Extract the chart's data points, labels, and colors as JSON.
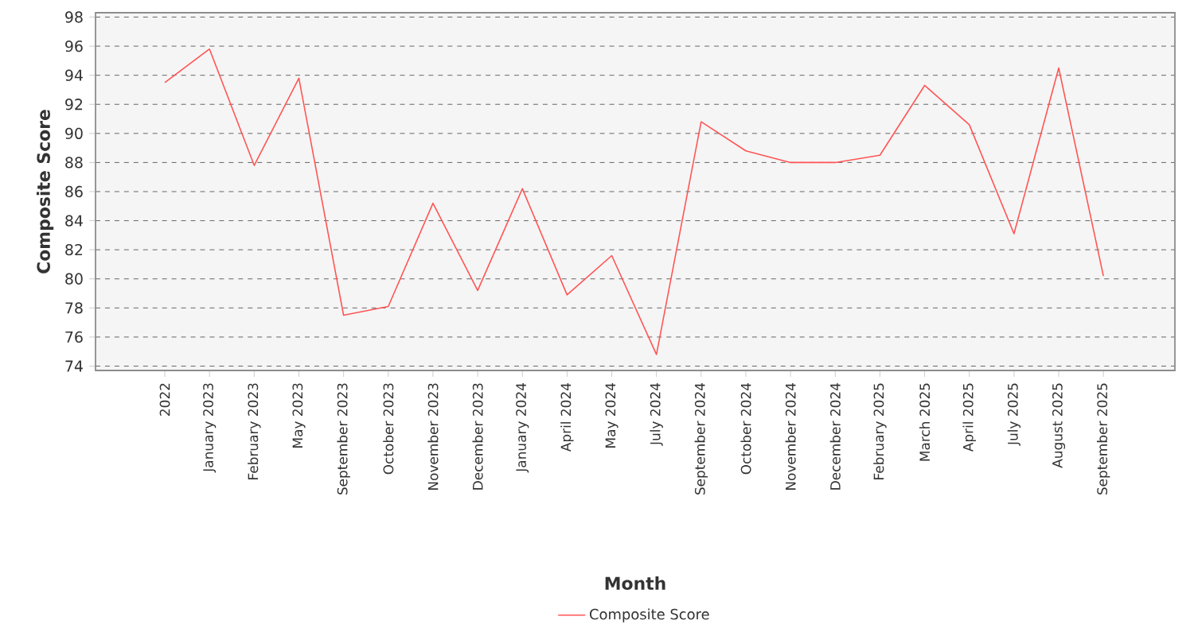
{
  "chart_data": {
    "type": "line",
    "xlabel": "Month",
    "ylabel": "Composite Score",
    "categories": [
      "2022",
      "January 2023",
      "February 2023",
      "May 2023",
      "September 2023",
      "October 2023",
      "November 2023",
      "December 2023",
      "January 2024",
      "April 2024",
      "May 2024",
      "July 2024",
      "September 2024",
      "October 2024",
      "November 2024",
      "December 2024",
      "February 2025",
      "March 2025",
      "April 2025",
      "July 2025",
      "August 2025",
      "September 2025"
    ],
    "series": [
      {
        "name": "Composite Score",
        "color": "#ff5555",
        "values": [
          93.5,
          95.8,
          87.8,
          93.8,
          77.5,
          78.1,
          85.2,
          79.2,
          86.2,
          78.9,
          81.6,
          74.8,
          90.8,
          88.8,
          88.0,
          88.0,
          88.5,
          93.3,
          90.6,
          83.1,
          94.5,
          80.2
        ]
      }
    ],
    "ylim": [
      73.7,
      98.3
    ],
    "yticks": [
      74,
      76,
      78,
      80,
      82,
      84,
      86,
      88,
      90,
      92,
      94,
      96,
      98
    ],
    "grid": "y",
    "legend": "bottom"
  }
}
